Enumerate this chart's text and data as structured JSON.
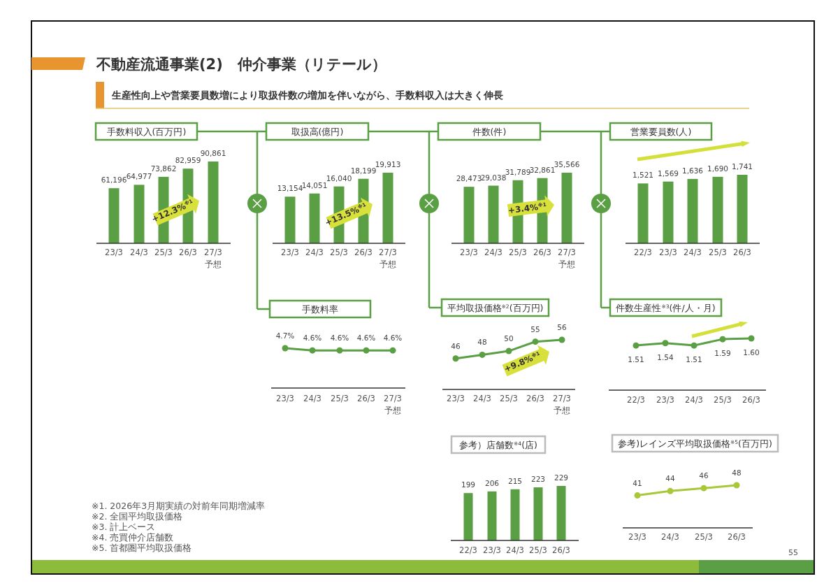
{
  "chart_data": [
    {
      "type": "other",
      "title": "不動産流通事業(2)　仲介事業（リテール）",
      "subtitle": "生産性向上や営業要員数増により取扱件数の増加を伴いながら、手数料収入は大きく伸長",
      "annotations": [
        "※1. 2026年3月期実績の対前年同期増減率",
        "※2. 全国平均取扱価格",
        "※3. 計上ベース",
        "※4. 売買仲介店舗数",
        "※5. 首都圏平均取扱価格",
        "55"
      ]
    },
    {
      "type": "bar",
      "title": "手数料収入(百万円)",
      "categories": [
        "23/3",
        "24/3",
        "25/3",
        "26/3",
        "27/3 予想"
      ],
      "color": "#5b9f45",
      "values": [
        61196,
        64977,
        73862,
        82959,
        90861
      ],
      "value_labels": [
        "61,196",
        "64,977",
        "73,862",
        "82,959",
        "90,861"
      ],
      "annotations": [
        "+12.3%$^{※1}$"
      ]
    },
    {
      "type": "bar",
      "title": "取扱高(億円)",
      "categories": [
        "23/3",
        "24/3",
        "25/3",
        "26/3",
        "27/3 予想"
      ],
      "color": "#5b9f45",
      "values": [
        13154,
        14051,
        16040,
        18199,
        19913
      ],
      "value_labels": [
        "13,154",
        "14,051",
        "16,040",
        "18,199",
        "19,913"
      ],
      "annotations": [
        "+13.5%$^{※1}$"
      ]
    },
    {
      "type": "bar",
      "title": "件数(件)",
      "categories": [
        "23/3",
        "24/3",
        "25/3",
        "26/3",
        "27/3 予想"
      ],
      "color": "#5b9f45",
      "values": [
        28473,
        29038,
        31789,
        32861,
        35566
      ],
      "value_labels": [
        "28,473",
        "29,038",
        "31,789",
        "32,861",
        "35,566"
      ],
      "annotations": [
        "+3.4%$^{※1}$"
      ]
    },
    {
      "type": "bar",
      "title": "営業要員数(人)",
      "categories": [
        "22/3",
        "23/3",
        "24/3",
        "25/3",
        "26/3"
      ],
      "color": "#5b9f45",
      "values": [
        1521,
        1569,
        1636,
        1690,
        1741
      ],
      "value_labels": [
        "1,521",
        "1,569",
        "1,636",
        "1,690",
        "1,741"
      ]
    },
    {
      "type": "line",
      "title": "手数料率",
      "categories": [
        "23/3",
        "24/3",
        "25/3",
        "26/3",
        "27/3 予想"
      ],
      "color": "#5b9f45",
      "marker": "circle",
      "values": [
        4.7,
        4.6,
        4.6,
        4.6,
        4.6
      ],
      "value_labels": [
        "4.7%",
        "4.6%",
        "4.6%",
        "4.6%",
        "4.6%"
      ]
    },
    {
      "type": "line",
      "title": "平均取扱価格$^{※2}$(百万円)",
      "categories": [
        "23/3",
        "24/3",
        "25/3",
        "26/3",
        "27/3 予想"
      ],
      "color": "#5b9f45",
      "marker": "circle",
      "values": [
        46,
        48,
        50,
        55,
        56
      ],
      "value_labels": [
        "46",
        "48",
        "50",
        "55",
        "56"
      ],
      "annotations": [
        "+9.8%$^{※1}$"
      ]
    },
    {
      "type": "line",
      "title": "件数生産性$^{※3}$(件/人・月)",
      "categories": [
        "22/3",
        "23/3",
        "24/3",
        "25/3",
        "26/3"
      ],
      "color": "#5b9f45",
      "marker": "circle",
      "values": [
        1.51,
        1.54,
        1.51,
        1.59,
        1.6
      ],
      "value_labels": [
        "1.51",
        "1.54",
        "1.51",
        "1.59",
        "1.60"
      ]
    },
    {
      "type": "bar",
      "title": "参考）店舗数$^{※4}$(店)",
      "categories": [
        "22/3",
        "23/3",
        "24/3",
        "25/3",
        "26/3"
      ],
      "color": "#5b9f45",
      "values": [
        199,
        206,
        215,
        223,
        229
      ],
      "value_labels": [
        "199",
        "206",
        "215",
        "223",
        "229"
      ]
    },
    {
      "type": "line",
      "title": "参考)レインズ平均取扱価格$^{※5}$(百万円)",
      "categories": [
        "23/3",
        "24/3",
        "25/3",
        "26/3"
      ],
      "color": "#a8c83a",
      "marker": "circle",
      "values": [
        41,
        44,
        46,
        48
      ],
      "value_labels": [
        "41",
        "44",
        "46",
        "48"
      ]
    }
  ]
}
